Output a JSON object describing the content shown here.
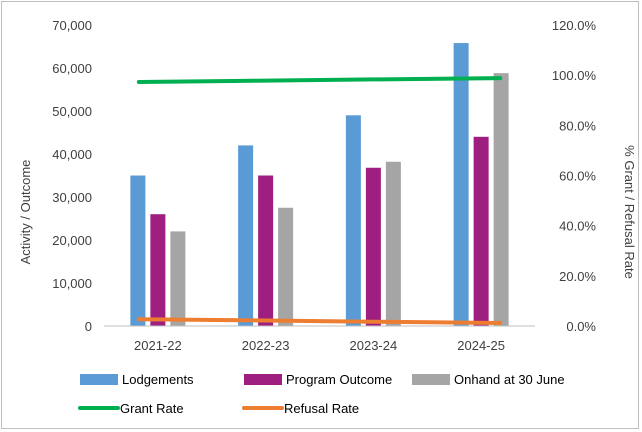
{
  "chart_data": {
    "type": "bar",
    "categories": [
      "2021-22",
      "2022-23",
      "2023-24",
      "2024-25"
    ],
    "series": [
      {
        "name": "Lodgements",
        "type": "bar",
        "axis": "left",
        "color": "#5b9bd5",
        "values": [
          35000,
          42000,
          49000,
          65800
        ]
      },
      {
        "name": "Program Outcome",
        "type": "bar",
        "axis": "left",
        "color": "#9e1f7f",
        "values": [
          26000,
          35000,
          36800,
          44000
        ]
      },
      {
        "name": "Onhand at 30 June",
        "type": "bar",
        "axis": "left",
        "color": "#a5a5a5",
        "values": [
          22000,
          27500,
          38200,
          58800
        ]
      },
      {
        "name": "Grant Rate",
        "type": "line",
        "axis": "right",
        "color": "#00b050",
        "values": [
          97.3,
          97.8,
          98.3,
          98.8
        ]
      },
      {
        "name": "Refusal Rate",
        "type": "line",
        "axis": "right",
        "color": "#ed7d31",
        "values": [
          2.7,
          2.2,
          1.7,
          1.2
        ]
      }
    ],
    "xlabel": "",
    "ylabel": "Activity / Outcome",
    "y2label": "% Grant / Refusal Rate",
    "ylim": [
      0,
      70000
    ],
    "y2lim": [
      0,
      120
    ],
    "yticks": [
      "0",
      "10,000",
      "20,000",
      "30,000",
      "40,000",
      "50,000",
      "60,000",
      "70,000"
    ],
    "y2ticks": [
      "0.0%",
      "20.0%",
      "40.0%",
      "60.0%",
      "80.0%",
      "100.0%",
      "120.0%"
    ],
    "grid": false,
    "legend_position": "bottom"
  }
}
